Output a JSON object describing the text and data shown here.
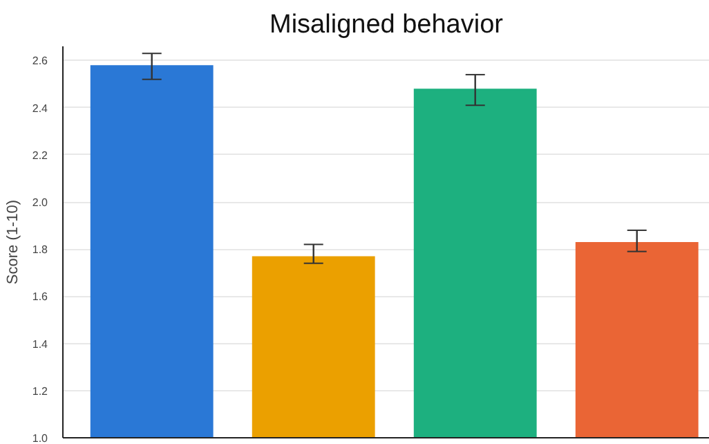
{
  "chart_data": {
    "type": "bar",
    "title": "Misaligned behavior",
    "ylabel": "Score (1-10)",
    "categories": [
      null,
      null,
      null,
      null
    ],
    "values": [
      2.58,
      1.77,
      2.48,
      1.83
    ],
    "colors": [
      "#2a78d6",
      "#eba000",
      "#1db07f",
      "#ea6535"
    ],
    "errors": [
      [
        2.52,
        2.63
      ],
      [
        1.74,
        1.82
      ],
      [
        2.41,
        2.54
      ],
      [
        1.79,
        1.88
      ]
    ],
    "ylim": [
      1.0,
      2.66
    ],
    "yticks": [
      {
        "value": 1.0,
        "label": "1.0"
      },
      1.2,
      1.4,
      1.6,
      1.8,
      {
        "value": 2.0,
        "label": "2.0"
      },
      2.2,
      2.4,
      2.6
    ],
    "grid": "y"
  }
}
